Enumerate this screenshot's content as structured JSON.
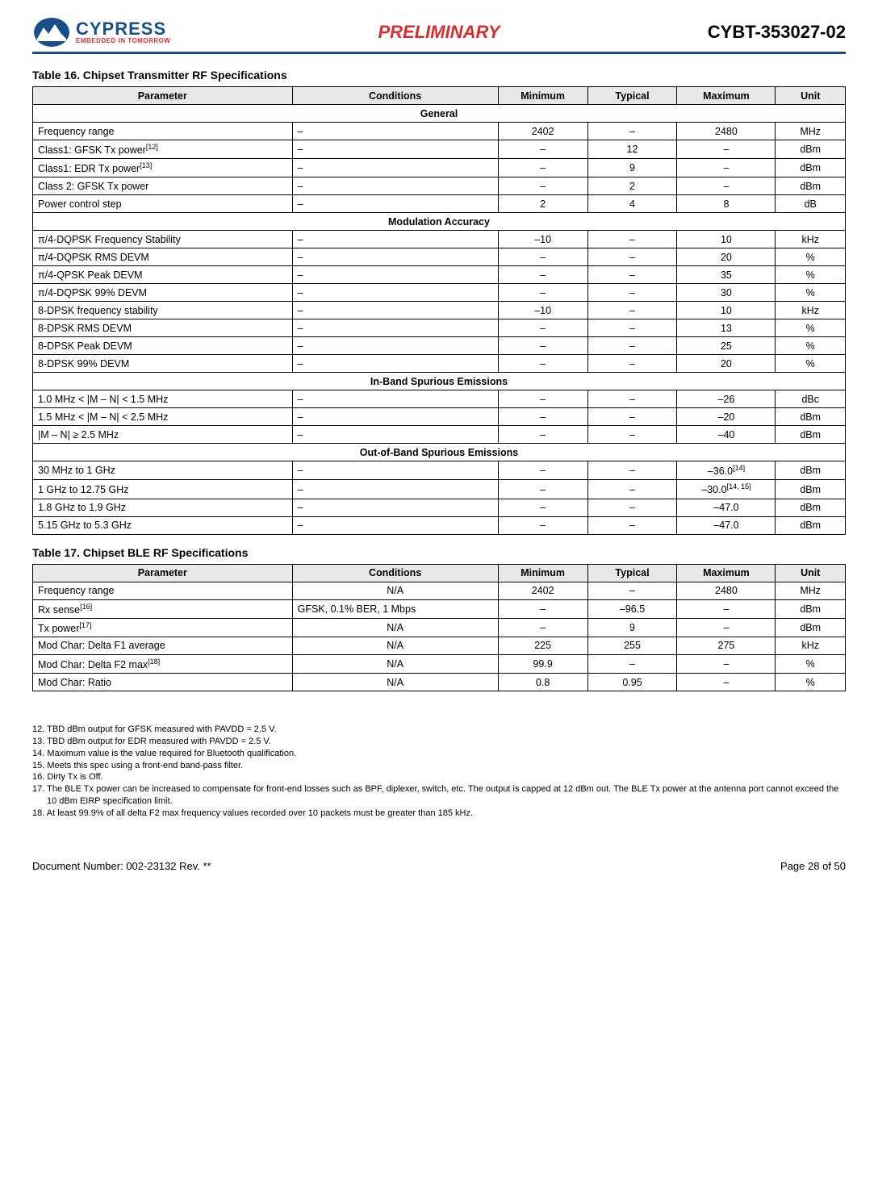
{
  "header": {
    "logo_main": "CYPRESS",
    "logo_sub": "EMBEDDED IN TOMORROW",
    "center": "PRELIMINARY",
    "right": "CYBT-353027-02"
  },
  "table16": {
    "title": "Table 16.  Chipset Transmitter RF Specifications",
    "columns": [
      "Parameter",
      "Conditions",
      "Minimum",
      "Typical",
      "Maximum",
      "Unit"
    ],
    "sections": [
      {
        "name": "General",
        "rows": [
          {
            "param": "Frequency range",
            "cond": "–",
            "min": "2402",
            "typ": "–",
            "max": "2480",
            "unit": "MHz"
          },
          {
            "param": "Class1: GFSK Tx power",
            "sup": "[12]",
            "cond": "–",
            "min": "–",
            "typ": "12",
            "max": "–",
            "unit": "dBm"
          },
          {
            "param": "Class1: EDR Tx power",
            "sup": "[13]",
            "cond": "–",
            "min": "–",
            "typ": "9",
            "max": "–",
            "unit": "dBm"
          },
          {
            "param": "Class 2: GFSK Tx power",
            "cond": "–",
            "min": "–",
            "typ": "2",
            "max": "–",
            "unit": "dBm"
          },
          {
            "param": "Power control step",
            "cond": "–",
            "min": "2",
            "typ": "4",
            "max": "8",
            "unit": "dB"
          }
        ]
      },
      {
        "name": "Modulation Accuracy",
        "rows": [
          {
            "param": "π/4-DQPSK Frequency Stability",
            "cond": "–",
            "min": "–10",
            "typ": "–",
            "max": "10",
            "unit": "kHz"
          },
          {
            "param": "π/4-DQPSK RMS DEVM",
            "cond": "–",
            "min": "–",
            "typ": "–",
            "max": "20",
            "unit": "%"
          },
          {
            "param": "π/4-QPSK Peak DEVM",
            "cond": "–",
            "min": "–",
            "typ": "–",
            "max": "35",
            "unit": "%"
          },
          {
            "param": "π/4-DQPSK 99% DEVM",
            "cond": "–",
            "min": "–",
            "typ": "–",
            "max": "30",
            "unit": "%"
          },
          {
            "param": "8-DPSK frequency stability",
            "cond": "–",
            "min": "–10",
            "typ": "–",
            "max": "10",
            "unit": "kHz"
          },
          {
            "param": "8-DPSK RMS DEVM",
            "cond": "–",
            "min": "–",
            "typ": "–",
            "max": "13",
            "unit": "%"
          },
          {
            "param": "8-DPSK Peak DEVM",
            "cond": "–",
            "min": "–",
            "typ": "–",
            "max": "25",
            "unit": "%"
          },
          {
            "param": "8-DPSK 99% DEVM",
            "cond": "–",
            "min": "–",
            "typ": "–",
            "max": "20",
            "unit": "%"
          }
        ]
      },
      {
        "name": "In-Band Spurious Emissions",
        "rows": [
          {
            "param": "1.0 MHz < |M – N| < 1.5 MHz",
            "cond": "–",
            "min": "–",
            "typ": "–",
            "max": "–26",
            "unit": "dBc"
          },
          {
            "param": "1.5 MHz < |M – N| < 2.5 MHz",
            "cond": "–",
            "min": "–",
            "typ": "–",
            "max": "–20",
            "unit": "dBm"
          },
          {
            "param": "|M – N| ≥ 2.5 MHz",
            "cond": "–",
            "min": "–",
            "typ": "–",
            "max": "–40",
            "unit": "dBm"
          }
        ]
      },
      {
        "name": "Out-of-Band Spurious Emissions",
        "rows": [
          {
            "param": "30 MHz to 1 GHz",
            "cond": "–",
            "min": "–",
            "typ": "–",
            "max": "–36.0",
            "maxsup": "[14]",
            "unit": "dBm"
          },
          {
            "param": "1 GHz to 12.75 GHz",
            "cond": "–",
            "min": "–",
            "typ": "–",
            "max": "–30.0",
            "maxsup": "[14, 15]",
            "unit": "dBm"
          },
          {
            "param": "1.8 GHz to 1.9 GHz",
            "cond": "–",
            "min": "–",
            "typ": "–",
            "max": "–47.0",
            "unit": "dBm"
          },
          {
            "param": "5.15 GHz to 5.3 GHz",
            "cond": "–",
            "min": "–",
            "typ": "–",
            "max": "–47.0",
            "unit": "dBm"
          }
        ]
      }
    ]
  },
  "table17": {
    "title": "Table 17.  Chipset BLE RF Specifications",
    "columns": [
      "Parameter",
      "Conditions",
      "Minimum",
      "Typical",
      "Maximum",
      "Unit"
    ],
    "rows": [
      {
        "param": "Frequency range",
        "cond": "N/A",
        "min": "2402",
        "typ": "–",
        "max": "2480",
        "unit": "MHz"
      },
      {
        "param": "Rx sense",
        "sup": "[16]",
        "cond": "GFSK, 0.1% BER, 1 Mbps",
        "condAlign": "left",
        "min": "–",
        "typ": "–96.5",
        "max": "–",
        "unit": "dBm"
      },
      {
        "param": "Tx power",
        "sup": "[17]",
        "cond": "N/A",
        "min": "–",
        "typ": "9",
        "max": "–",
        "unit": "dBm"
      },
      {
        "param": "Mod Char: Delta F1 average",
        "cond": "N/A",
        "min": "225",
        "typ": "255",
        "max": "275",
        "unit": "kHz"
      },
      {
        "param": "Mod Char: Delta F2 max",
        "sup": "[18]",
        "cond": "N/A",
        "min": "99.9",
        "typ": "–",
        "max": "–",
        "unit": "%"
      },
      {
        "param": "Mod Char: Ratio",
        "cond": "N/A",
        "min": "0.8",
        "typ": "0.95",
        "max": "–",
        "unit": "%"
      }
    ]
  },
  "footnotes": [
    "12. TBD dBm output for GFSK measured with PAVDD = 2.5 V.",
    "13. TBD dBm output for EDR measured with PAVDD = 2.5 V.",
    "14. Maximum value is the value required for Bluetooth qualification.",
    "15. Meets this spec using a front-end band-pass filter.",
    "16. Dirty Tx is Off.",
    "17. The BLE Tx power can be increased to compensate for front-end losses such as BPF, diplexer, switch, etc. The output is capped at 12 dBm out. The BLE Tx power at the antenna port cannot exceed the 10 dBm EIRP specification limit.",
    "18. At least 99.9% of all delta F2 max frequency values recorded over 10 packets must be greater than 185 kHz."
  ],
  "footer": {
    "left": "Document Number: 002-23132 Rev. **",
    "right": "Page 28 of 50"
  }
}
